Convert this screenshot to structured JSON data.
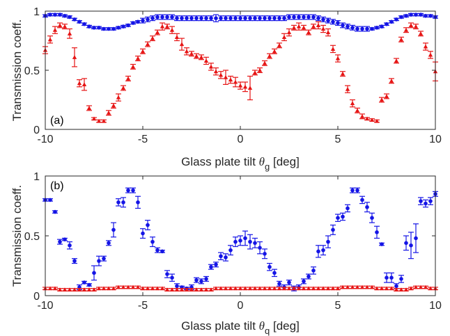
{
  "colors": {
    "blue": "#1414e6",
    "red": "#e61414",
    "axis": "#262626",
    "background": "#ffffff"
  },
  "chart_data": [
    {
      "type": "scatter",
      "panel_label": "(a)",
      "xlabel_main": "Glass plate tilt ",
      "xlabel_theta": "θ",
      "xlabel_sub": "g",
      "xlabel_unit": " [deg]",
      "ylabel": "Transmission coeff.",
      "xlim": [
        -10,
        10
      ],
      "ylim": [
        0,
        1
      ],
      "xticks": [
        -10,
        -5,
        0,
        5,
        10
      ],
      "yticks": [
        0,
        0.5,
        1
      ],
      "xtick_labels": [
        "-10",
        "-5",
        "0",
        "5",
        "10"
      ],
      "ytick_labels": [
        "0",
        "0.5",
        "1"
      ],
      "error_bars": true,
      "series": [
        {
          "color": "blue",
          "marker": "circle",
          "x": [
            -10,
            -9.75,
            -9.5,
            -9.25,
            -9,
            -8.75,
            -8.5,
            -8.25,
            -8,
            -7.75,
            -7.5,
            -7.25,
            -7,
            -6.75,
            -6.5,
            -6.25,
            -6,
            -5.75,
            -5.5,
            -5.25,
            -5,
            -4.75,
            -4.5,
            -4.25,
            -4,
            -3.75,
            -3.5,
            -3.25,
            -3,
            -2.75,
            -2.5,
            -2.25,
            -2,
            -1.75,
            -1.5,
            -1.25,
            -1,
            -0.75,
            -0.5,
            -0.25,
            0,
            0.25,
            0.5,
            0.75,
            1,
            1.25,
            1.5,
            1.75,
            2,
            2.25,
            2.5,
            2.75,
            3,
            3.25,
            3.5,
            3.75,
            4,
            4.25,
            4.5,
            4.75,
            5,
            5.25,
            5.5,
            5.75,
            6,
            6.25,
            6.5,
            6.75,
            7,
            7.25,
            7.5,
            7.75,
            8,
            8.25,
            8.5,
            8.75,
            9,
            9.25,
            9.5,
            9.75,
            10
          ],
          "y": [
            0.96,
            0.97,
            0.97,
            0.97,
            0.96,
            0.95,
            0.93,
            0.91,
            0.89,
            0.87,
            0.86,
            0.86,
            0.85,
            0.85,
            0.85,
            0.86,
            0.87,
            0.88,
            0.9,
            0.91,
            0.92,
            0.93,
            0.94,
            0.95,
            0.95,
            0.95,
            0.95,
            0.94,
            0.94,
            0.94,
            0.94,
            0.94,
            0.94,
            0.94,
            0.94,
            0.94,
            0.94,
            0.94,
            0.94,
            0.94,
            0.94,
            0.94,
            0.94,
            0.94,
            0.94,
            0.94,
            0.94,
            0.94,
            0.94,
            0.94,
            0.95,
            0.95,
            0.95,
            0.95,
            0.95,
            0.95,
            0.94,
            0.93,
            0.92,
            0.91,
            0.9,
            0.88,
            0.87,
            0.86,
            0.85,
            0.85,
            0.85,
            0.85,
            0.86,
            0.87,
            0.89,
            0.91,
            0.93,
            0.95,
            0.96,
            0.97,
            0.97,
            0.97,
            0.96,
            0.96,
            0.95
          ],
          "err": [
            0.01,
            0.01,
            0.01,
            0.01,
            0.01,
            0.01,
            0.01,
            0.01,
            0.01,
            0.01,
            0.01,
            0.01,
            0.01,
            0.01,
            0.01,
            0.01,
            0.01,
            0.01,
            0.01,
            0.01,
            0.02,
            0.02,
            0.02,
            0.02,
            0.02,
            0.02,
            0.02,
            0.02,
            0.02,
            0.02,
            0.02,
            0.02,
            0.02,
            0.02,
            0.02,
            0.03,
            0.02,
            0.02,
            0.02,
            0.02,
            0.02,
            0.02,
            0.02,
            0.02,
            0.02,
            0.02,
            0.02,
            0.02,
            0.02,
            0.02,
            0.02,
            0.02,
            0.02,
            0.02,
            0.02,
            0.02,
            0.02,
            0.02,
            0.02,
            0.02,
            0.02,
            0.02,
            0.02,
            0.02,
            0.02,
            0.02,
            0.02,
            0.01,
            0.01,
            0.01,
            0.01,
            0.01,
            0.01,
            0.01,
            0.01,
            0.01,
            0.01,
            0.01,
            0.01,
            0.01,
            0.01
          ]
        },
        {
          "color": "red",
          "marker": "triangle",
          "x": [
            -10,
            -9.75,
            -9.5,
            -9.25,
            -9,
            -8.75,
            -8.5,
            -8.25,
            -8,
            -7.75,
            -7.5,
            -7.25,
            -7,
            -6.75,
            -6.5,
            -6.25,
            -6,
            -5.75,
            -5.5,
            -5.25,
            -5,
            -4.75,
            -4.5,
            -4.25,
            -4,
            -3.75,
            -3.5,
            -3.25,
            -3,
            -2.75,
            -2.5,
            -2.25,
            -2,
            -1.75,
            -1.5,
            -1.25,
            -1,
            -0.75,
            -0.5,
            -0.25,
            0,
            0.25,
            0.5,
            0.75,
            1,
            1.25,
            1.5,
            1.75,
            2,
            2.25,
            2.5,
            2.75,
            3,
            3.25,
            3.5,
            3.75,
            4,
            4.25,
            4.5,
            4.75,
            5,
            5.25,
            5.5,
            5.75,
            6,
            6.25,
            6.5,
            6.75,
            7,
            7.25,
            7.5,
            7.75,
            8,
            8.25,
            8.5,
            8.75,
            9,
            9.25,
            9.5,
            9.75,
            10
          ],
          "y": [
            0.67,
            0.76,
            0.84,
            0.88,
            0.87,
            0.81,
            0.61,
            0.39,
            0.38,
            0.18,
            0.09,
            0.07,
            0.07,
            0.14,
            0.2,
            0.27,
            0.35,
            0.43,
            0.53,
            0.6,
            0.66,
            0.72,
            0.77,
            0.82,
            0.87,
            0.87,
            0.84,
            0.78,
            0.72,
            0.66,
            0.64,
            0.62,
            0.61,
            0.58,
            0.53,
            0.49,
            0.46,
            0.44,
            0.42,
            0.4,
            0.37,
            0.36,
            0.35,
            0.48,
            0.5,
            0.56,
            0.62,
            0.66,
            0.71,
            0.78,
            0.82,
            0.86,
            0.87,
            0.86,
            0.82,
            0.87,
            0.88,
            0.85,
            0.82,
            0.68,
            0.6,
            0.47,
            0.34,
            0.22,
            0.16,
            0.11,
            0.09,
            0.08,
            0.07,
            0.25,
            0.28,
            0.41,
            0.58,
            0.76,
            0.84,
            0.88,
            0.87,
            0.81,
            0.7,
            0.63,
            0.49
          ],
          "err": [
            0.03,
            0.03,
            0.03,
            0.02,
            0.02,
            0.04,
            0.08,
            0.03,
            0.05,
            0.02,
            0.01,
            0.01,
            0.01,
            0.02,
            0.02,
            0.03,
            0.02,
            0.02,
            0.02,
            0.02,
            0.02,
            0.02,
            0.02,
            0.02,
            0.03,
            0.02,
            0.03,
            0.03,
            0.05,
            0.03,
            0.02,
            0.02,
            0.02,
            0.03,
            0.03,
            0.03,
            0.03,
            0.06,
            0.03,
            0.04,
            0.03,
            0.04,
            0.1,
            0.02,
            0.02,
            0.02,
            0.02,
            0.02,
            0.02,
            0.03,
            0.03,
            0.02,
            0.03,
            0.02,
            0.02,
            0.02,
            0.03,
            0.03,
            0.03,
            0.03,
            0.03,
            0.02,
            0.03,
            0.03,
            0.02,
            0.02,
            0.01,
            0.01,
            0.01,
            0.02,
            0.02,
            0.02,
            0.02,
            0.02,
            0.02,
            0.02,
            0.02,
            0.02,
            0.03,
            0.03,
            0.08
          ]
        }
      ]
    },
    {
      "type": "scatter",
      "panel_label": "(b)",
      "xlabel_main": "Glass plate tilt ",
      "xlabel_theta": "θ",
      "xlabel_sub": "q",
      "xlabel_unit": " [deg]",
      "ylabel": "Transmission coeff.",
      "xlim": [
        -10,
        10
      ],
      "ylim": [
        0,
        1
      ],
      "xticks": [
        -10,
        -5,
        0,
        5,
        10
      ],
      "yticks": [
        0,
        0.5,
        1
      ],
      "xtick_labels": [
        "-10",
        "-5",
        "0",
        "5",
        "10"
      ],
      "ytick_labels": [
        "0",
        "0.5",
        "1"
      ],
      "error_bars": true,
      "series": [
        {
          "color": "blue",
          "marker": "circle",
          "x": [
            -10,
            -9.75,
            -9.5,
            -9.25,
            -9,
            -8.75,
            -8.5,
            -8.25,
            -8,
            -7.75,
            -7.5,
            -7.25,
            -7,
            -6.75,
            -6.5,
            -6.25,
            -6,
            -5.75,
            -5.5,
            -5.25,
            -5,
            -4.75,
            -4.5,
            -4.25,
            -4,
            -3.75,
            -3.5,
            -3.25,
            -3,
            -2.75,
            -2.5,
            -2.25,
            -2,
            -1.75,
            -1.5,
            -1.25,
            -1,
            -0.75,
            -0.5,
            -0.25,
            0,
            0.25,
            0.5,
            0.75,
            1,
            1.25,
            1.5,
            1.75,
            2,
            2.25,
            2.5,
            2.75,
            3,
            3.25,
            3.5,
            3.75,
            4,
            4.25,
            4.5,
            4.75,
            5,
            5.25,
            5.5,
            5.75,
            6,
            6.25,
            6.5,
            6.75,
            7,
            7.25,
            7.5,
            7.75,
            8,
            8.25,
            8.5,
            8.75,
            9,
            9.25,
            9.5,
            9.75,
            10
          ],
          "y": [
            0.8,
            0.8,
            0.7,
            0.45,
            0.47,
            0.42,
            0.29,
            0.07,
            0.11,
            0.09,
            0.19,
            0.29,
            0.31,
            0.44,
            0.55,
            0.78,
            0.78,
            0.88,
            0.88,
            0.78,
            0.52,
            0.59,
            0.45,
            0.38,
            0.37,
            0.18,
            0.15,
            0.08,
            0.07,
            0.06,
            0.07,
            0.13,
            0.12,
            0.14,
            0.24,
            0.26,
            0.33,
            0.32,
            0.38,
            0.45,
            0.46,
            0.48,
            0.45,
            0.44,
            0.4,
            0.35,
            0.24,
            0.19,
            0.1,
            0.07,
            0.11,
            0.06,
            0.07,
            0.12,
            0.16,
            0.21,
            0.37,
            0.38,
            0.45,
            0.55,
            0.65,
            0.66,
            0.73,
            0.88,
            0.88,
            0.8,
            0.74,
            0.65,
            0.53,
            0.43,
            0.15,
            0.15,
            0.08,
            0.14,
            0.44,
            0.42,
            0.48,
            0.79,
            0.77,
            0.79,
            0.85
          ],
          "err": [
            0.01,
            0.01,
            0.01,
            0.02,
            0.01,
            0.03,
            0.02,
            0.02,
            0.01,
            0.01,
            0.06,
            0.04,
            0.02,
            0.02,
            0.06,
            0.03,
            0.04,
            0.02,
            0.02,
            0.05,
            0.04,
            0.04,
            0.04,
            0.02,
            0.01,
            0.03,
            0.03,
            0.02,
            0.01,
            0.01,
            0.02,
            0.02,
            0.02,
            0.02,
            0.02,
            0.02,
            0.03,
            0.03,
            0.04,
            0.04,
            0.04,
            0.06,
            0.06,
            0.04,
            0.05,
            0.04,
            0.03,
            0.03,
            0.02,
            0.02,
            0.02,
            0.02,
            0.02,
            0.02,
            0.02,
            0.03,
            0.05,
            0.04,
            0.05,
            0.04,
            0.03,
            0.03,
            0.03,
            0.02,
            0.02,
            0.03,
            0.04,
            0.04,
            0.05,
            0.01,
            0.04,
            0.04,
            0.02,
            0.03,
            0.06,
            0.11,
            0.12,
            0.03,
            0.03,
            0.03,
            0.02
          ]
        },
        {
          "color": "red",
          "marker": "triangle",
          "x": [
            -10,
            -9.75,
            -9.5,
            -9.25,
            -9,
            -8.75,
            -8.5,
            -8.25,
            -8,
            -7.75,
            -7.5,
            -7.25,
            -7,
            -6.75,
            -6.5,
            -6.25,
            -6,
            -5.75,
            -5.5,
            -5.25,
            -5,
            -4.75,
            -4.5,
            -4.25,
            -4,
            -3.75,
            -3.5,
            -3.25,
            -3,
            -2.75,
            -2.5,
            -2.25,
            -2,
            -1.75,
            -1.5,
            -1.25,
            -1,
            -0.75,
            -0.5,
            -0.25,
            0,
            0.25,
            0.5,
            0.75,
            1,
            1.25,
            1.5,
            1.75,
            2,
            2.25,
            2.5,
            2.75,
            3,
            3.25,
            3.5,
            3.75,
            4,
            4.25,
            4.5,
            4.75,
            5,
            5.25,
            5.5,
            5.75,
            6,
            6.25,
            6.5,
            6.75,
            7,
            7.25,
            7.5,
            7.75,
            8,
            8.25,
            8.5,
            8.75,
            9,
            9.25,
            9.5,
            9.75,
            10
          ],
          "y": [
            0.06,
            0.06,
            0.06,
            0.05,
            0.05,
            0.05,
            0.05,
            0.05,
            0.05,
            0.05,
            0.05,
            0.06,
            0.06,
            0.06,
            0.06,
            0.07,
            0.07,
            0.07,
            0.07,
            0.07,
            0.06,
            0.06,
            0.06,
            0.06,
            0.06,
            0.05,
            0.05,
            0.05,
            0.05,
            0.05,
            0.05,
            0.05,
            0.05,
            0.05,
            0.05,
            0.06,
            0.06,
            0.06,
            0.06,
            0.06,
            0.06,
            0.06,
            0.06,
            0.06,
            0.06,
            0.06,
            0.06,
            0.06,
            0.06,
            0.06,
            0.06,
            0.06,
            0.06,
            0.06,
            0.06,
            0.06,
            0.06,
            0.06,
            0.06,
            0.06,
            0.06,
            0.07,
            0.07,
            0.07,
            0.07,
            0.07,
            0.07,
            0.07,
            0.06,
            0.06,
            0.06,
            0.06,
            0.05,
            0.05,
            0.05,
            0.06,
            0.07,
            0.07,
            0.07,
            0.06,
            0.06
          ],
          "err": [
            0.01,
            0.01,
            0.01,
            0.01,
            0.01,
            0.01,
            0.01,
            0.01,
            0.01,
            0.01,
            0.01,
            0.01,
            0.01,
            0.01,
            0.01,
            0.01,
            0.01,
            0.01,
            0.01,
            0.01,
            0.01,
            0.01,
            0.01,
            0.01,
            0.01,
            0.01,
            0.01,
            0.01,
            0.01,
            0.01,
            0.01,
            0.01,
            0.01,
            0.01,
            0.01,
            0.01,
            0.01,
            0.01,
            0.01,
            0.01,
            0.01,
            0.01,
            0.01,
            0.01,
            0.01,
            0.01,
            0.01,
            0.01,
            0.01,
            0.01,
            0.01,
            0.01,
            0.01,
            0.01,
            0.01,
            0.01,
            0.01,
            0.01,
            0.01,
            0.01,
            0.01,
            0.01,
            0.01,
            0.01,
            0.01,
            0.01,
            0.01,
            0.01,
            0.01,
            0.01,
            0.01,
            0.01,
            0.01,
            0.01,
            0.01,
            0.01,
            0.01,
            0.01,
            0.01,
            0.01,
            0.01
          ]
        }
      ]
    }
  ]
}
